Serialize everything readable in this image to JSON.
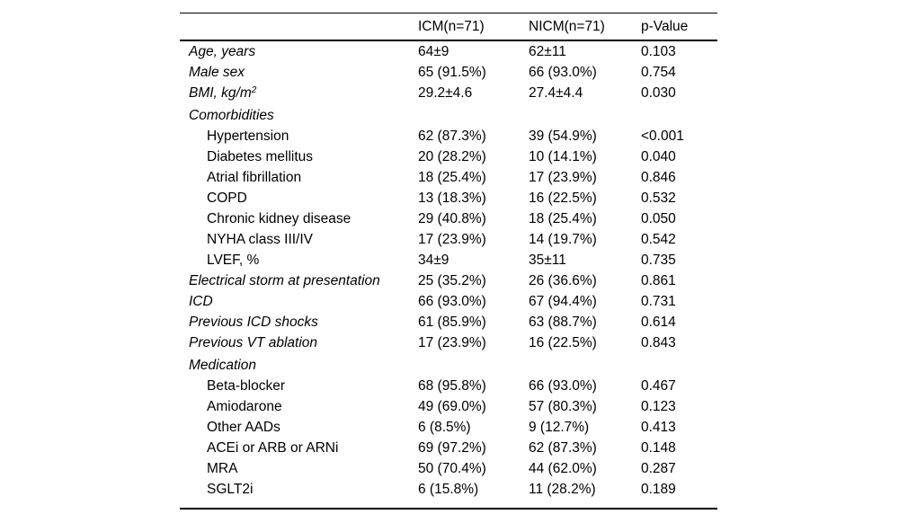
{
  "table": {
    "header": {
      "col1": "",
      "col2": "ICM(n=71)",
      "col3": "NICM(n=71)",
      "col4": "p-Value"
    },
    "rows": [
      {
        "label": "Age, years",
        "style": "italic",
        "indent": 0,
        "section": false,
        "values": [
          "64±9",
          "62±11",
          "0.103"
        ]
      },
      {
        "label": "Male sex",
        "style": "italic",
        "indent": 0,
        "section": false,
        "values": [
          "65 (91.5%)",
          "66 (93.0%)",
          "0.754"
        ]
      },
      {
        "label": "BMI, kg/m",
        "label_sup": "2",
        "style": "italic",
        "indent": 0,
        "section": false,
        "values": [
          "29.2±4.6",
          "27.4±4.4",
          "0.030"
        ]
      },
      {
        "label": "Comorbidities",
        "style": "italic",
        "indent": 0,
        "section": true,
        "values": [
          "",
          "",
          ""
        ]
      },
      {
        "label": "Hypertension",
        "style": "normal",
        "indent": 1,
        "section": false,
        "values": [
          "62 (87.3%)",
          "39 (54.9%)",
          "<0.001"
        ]
      },
      {
        "label": "Diabetes mellitus",
        "style": "normal",
        "indent": 1,
        "section": false,
        "values": [
          "20 (28.2%)",
          "10 (14.1%)",
          "0.040"
        ]
      },
      {
        "label": "Atrial fibrillation",
        "style": "normal",
        "indent": 1,
        "section": false,
        "values": [
          "18 (25.4%)",
          "17 (23.9%)",
          "0.846"
        ]
      },
      {
        "label": "COPD",
        "style": "normal",
        "indent": 1,
        "section": false,
        "values": [
          "13 (18.3%)",
          "16 (22.5%)",
          "0.532"
        ]
      },
      {
        "label": "Chronic kidney disease",
        "style": "normal",
        "indent": 1,
        "section": false,
        "values": [
          "29 (40.8%)",
          "18 (25.4%)",
          "0.050"
        ]
      },
      {
        "label": "NYHA class III/IV",
        "style": "normal",
        "indent": 1,
        "section": false,
        "values": [
          "17 (23.9%)",
          "14 (19.7%)",
          "0.542"
        ]
      },
      {
        "label": "LVEF, %",
        "style": "normal",
        "indent": 1,
        "section": false,
        "values": [
          "34±9",
          "35±11",
          "0.735"
        ]
      },
      {
        "label": "Electrical storm at presentation",
        "style": "italic",
        "indent": 0,
        "section": false,
        "values": [
          "25 (35.2%)",
          "26 (36.6%)",
          "0.861"
        ]
      },
      {
        "label": "ICD",
        "style": "italic",
        "indent": 0,
        "section": false,
        "values": [
          "66 (93.0%)",
          "67 (94.4%)",
          "0.731"
        ]
      },
      {
        "label": "Previous ICD shocks",
        "style": "italic",
        "indent": 0,
        "section": false,
        "values": [
          "61 (85.9%)",
          "63 (88.7%)",
          "0.614"
        ]
      },
      {
        "label": "Previous VT ablation",
        "style": "italic",
        "indent": 0,
        "section": false,
        "values": [
          "17 (23.9%)",
          "16 (22.5%)",
          "0.843"
        ]
      },
      {
        "label": "Medication",
        "style": "italic",
        "indent": 0,
        "section": true,
        "values": [
          "",
          "",
          ""
        ]
      },
      {
        "label": "Beta-blocker",
        "style": "normal",
        "indent": 1,
        "section": false,
        "values": [
          "68 (95.8%)",
          "66 (93.0%)",
          "0.467"
        ]
      },
      {
        "label": "Amiodarone",
        "style": "normal",
        "indent": 1,
        "section": false,
        "values": [
          "49 (69.0%)",
          "57 (80.3%)",
          "0.123"
        ]
      },
      {
        "label": "Other AADs",
        "style": "normal",
        "indent": 1,
        "section": false,
        "values": [
          "6 (8.5%)",
          "9 (12.7%)",
          "0.413"
        ]
      },
      {
        "label": "ACEi or ARB or ARNi",
        "style": "normal",
        "indent": 1,
        "section": false,
        "values": [
          "69 (97.2%)",
          "62 (87.3%)",
          "0.148"
        ]
      },
      {
        "label": "MRA",
        "style": "normal",
        "indent": 1,
        "section": false,
        "values": [
          "50 (70.4%)",
          "44 (62.0%)",
          "0.287"
        ]
      },
      {
        "label": "SGLT2i",
        "style": "normal",
        "indent": 1,
        "section": false,
        "values": [
          "6 (15.8%)",
          "11 (28.2%)",
          "0.189"
        ]
      }
    ]
  },
  "colors": {
    "background": "#ffffff",
    "text": "#000000",
    "rule": "#000000"
  }
}
